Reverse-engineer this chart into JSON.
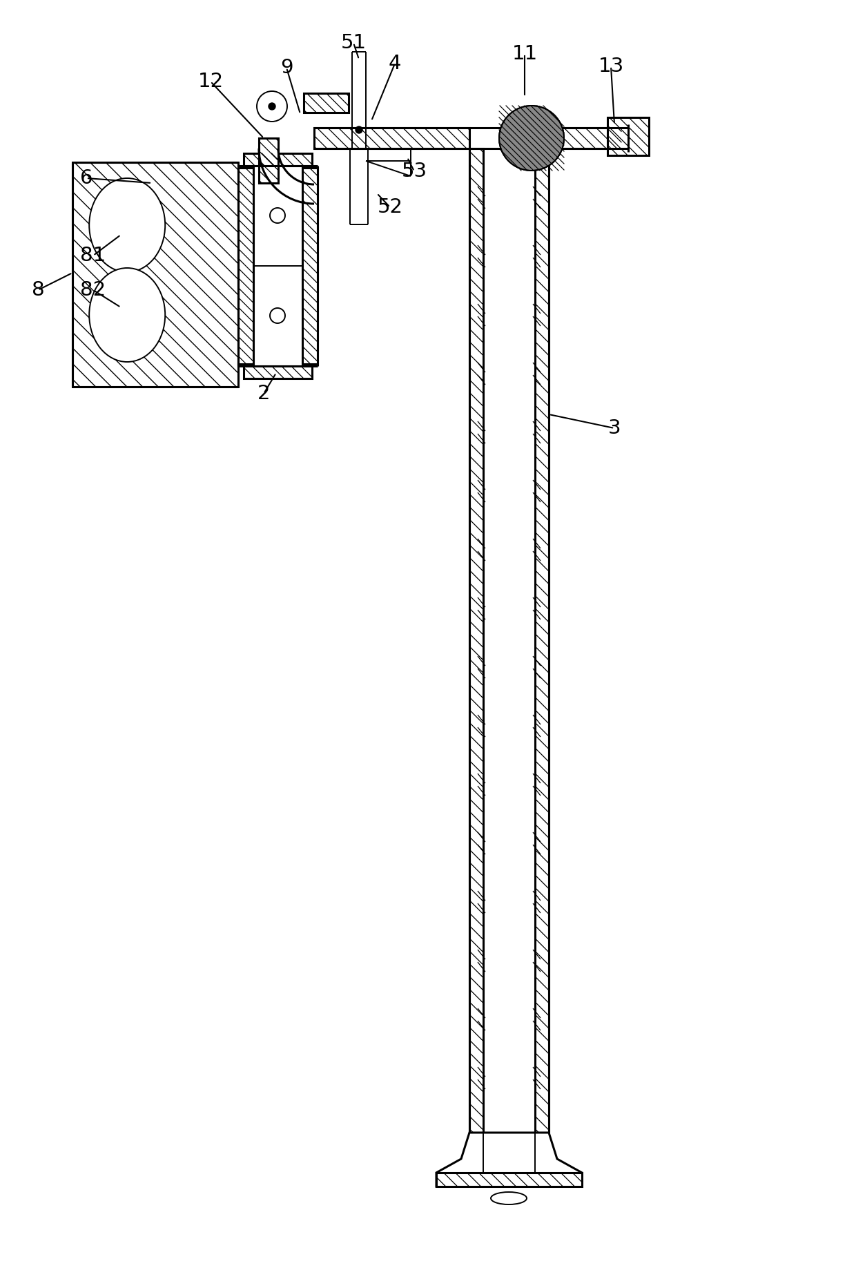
{
  "bg_color": "#ffffff",
  "line_color": "#000000",
  "label_fontsize": 21,
  "figsize": [
    12.4,
    18.36
  ],
  "dpi": 100
}
